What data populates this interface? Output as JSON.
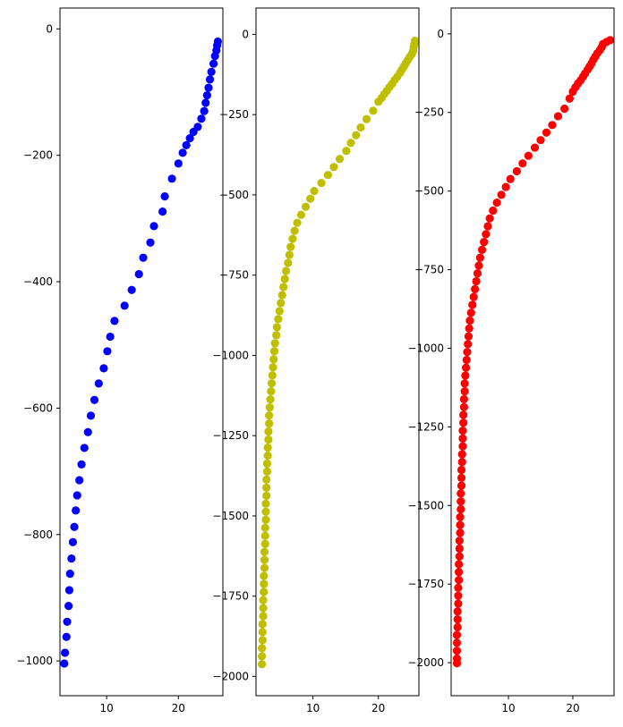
{
  "chart_data": [
    {
      "type": "scatter",
      "color": "#0000ff",
      "xlim": [
        3.5,
        26.2
      ],
      "ylim": [
        -1055,
        33
      ],
      "xticks": [
        {
          "value": 10,
          "label": "10"
        },
        {
          "value": 20,
          "label": "20"
        }
      ],
      "yticks": [
        {
          "value": 0,
          "label": "0"
        },
        {
          "value": -200,
          "label": "−200"
        },
        {
          "value": -400,
          "label": "−400"
        },
        {
          "value": -600,
          "label": "−600"
        },
        {
          "value": -800,
          "label": "−800"
        },
        {
          "value": -1000,
          "label": "−1000"
        }
      ],
      "points": [
        [
          25.5,
          -20
        ],
        [
          25.4,
          -26
        ],
        [
          25.3,
          -34
        ],
        [
          25.1,
          -43
        ],
        [
          24.9,
          -55
        ],
        [
          24.6,
          -68
        ],
        [
          24.4,
          -80
        ],
        [
          24.2,
          -93
        ],
        [
          24.0,
          -105
        ],
        [
          23.8,
          -117
        ],
        [
          23.6,
          -130
        ],
        [
          23.2,
          -142
        ],
        [
          22.7,
          -155
        ],
        [
          22.1,
          -163
        ],
        [
          21.6,
          -173
        ],
        [
          21.1,
          -184
        ],
        [
          20.6,
          -196
        ],
        [
          20.0,
          -213
        ],
        [
          19.1,
          -237
        ],
        [
          18.1,
          -265
        ],
        [
          17.8,
          -289
        ],
        [
          16.6,
          -312
        ],
        [
          16.1,
          -338
        ],
        [
          15.1,
          -362
        ],
        [
          14.5,
          -388
        ],
        [
          13.5,
          -413
        ],
        [
          12.5,
          -438
        ],
        [
          11.1,
          -462
        ],
        [
          10.5,
          -487
        ],
        [
          10.1,
          -510
        ],
        [
          9.6,
          -537
        ],
        [
          8.9,
          -561
        ],
        [
          8.3,
          -587
        ],
        [
          7.8,
          -612
        ],
        [
          7.4,
          -638
        ],
        [
          6.9,
          -663
        ],
        [
          6.5,
          -689
        ],
        [
          6.2,
          -714
        ],
        [
          5.9,
          -738
        ],
        [
          5.7,
          -762
        ],
        [
          5.5,
          -788
        ],
        [
          5.3,
          -812
        ],
        [
          5.1,
          -838
        ],
        [
          4.9,
          -862
        ],
        [
          4.8,
          -888
        ],
        [
          4.7,
          -913
        ],
        [
          4.5,
          -938
        ],
        [
          4.4,
          -962
        ],
        [
          4.2,
          -987
        ],
        [
          4.1,
          -1004
        ]
      ]
    },
    {
      "type": "scatter",
      "color": "#bfbf00",
      "xlim": [
        1.3,
        26.2
      ],
      "ylim": [
        -2060,
        82
      ],
      "xticks": [
        {
          "value": 10,
          "label": "10"
        },
        {
          "value": 20,
          "label": "20"
        }
      ],
      "yticks": [
        {
          "value": 0,
          "label": "0"
        },
        {
          "value": -250,
          "label": "−250"
        },
        {
          "value": -500,
          "label": "−500"
        },
        {
          "value": -750,
          "label": "−750"
        },
        {
          "value": -1000,
          "label": "−1000"
        },
        {
          "value": -1250,
          "label": "−1250"
        },
        {
          "value": -1500,
          "label": "−1500"
        },
        {
          "value": -1750,
          "label": "−1750"
        },
        {
          "value": -2000,
          "label": "−2000"
        }
      ],
      "points": [
        [
          25.6,
          -20
        ],
        [
          25.5,
          -30
        ],
        [
          25.4,
          -40
        ],
        [
          25.3,
          -52
        ],
        [
          25.1,
          -62
        ],
        [
          24.8,
          -70
        ],
        [
          24.5,
          -80
        ],
        [
          24.2,
          -90
        ],
        [
          23.9,
          -100
        ],
        [
          23.6,
          -110
        ],
        [
          23.3,
          -120
        ],
        [
          22.9,
          -132
        ],
        [
          22.5,
          -142
        ],
        [
          22.1,
          -154
        ],
        [
          21.7,
          -164
        ],
        [
          21.3,
          -176
        ],
        [
          20.9,
          -186
        ],
        [
          20.5,
          -198
        ],
        [
          20.0,
          -210
        ],
        [
          19.2,
          -238
        ],
        [
          18.2,
          -264
        ],
        [
          17.3,
          -290
        ],
        [
          16.6,
          -314
        ],
        [
          15.8,
          -338
        ],
        [
          15.1,
          -363
        ],
        [
          14.1,
          -388
        ],
        [
          13.2,
          -413
        ],
        [
          12.3,
          -438
        ],
        [
          11.3,
          -463
        ],
        [
          10.2,
          -488
        ],
        [
          9.6,
          -512
        ],
        [
          8.9,
          -537
        ],
        [
          8.2,
          -562
        ],
        [
          7.6,
          -587
        ],
        [
          7.2,
          -612
        ],
        [
          6.9,
          -637
        ],
        [
          6.6,
          -662
        ],
        [
          6.4,
          -687
        ],
        [
          6.2,
          -712
        ],
        [
          5.9,
          -737
        ],
        [
          5.7,
          -762
        ],
        [
          5.5,
          -787
        ],
        [
          5.3,
          -812
        ],
        [
          5.1,
          -837
        ],
        [
          4.9,
          -862
        ],
        [
          4.7,
          -887
        ],
        [
          4.5,
          -912
        ],
        [
          4.4,
          -937
        ],
        [
          4.2,
          -962
        ],
        [
          4.1,
          -987
        ],
        [
          4.0,
          -1012
        ],
        [
          3.9,
          -1037
        ],
        [
          3.8,
          -1062
        ],
        [
          3.7,
          -1087
        ],
        [
          3.6,
          -1112
        ],
        [
          3.5,
          -1137
        ],
        [
          3.4,
          -1162
        ],
        [
          3.3,
          -1187
        ],
        [
          3.3,
          -1212
        ],
        [
          3.2,
          -1237
        ],
        [
          3.2,
          -1262
        ],
        [
          3.1,
          -1287
        ],
        [
          3.1,
          -1312
        ],
        [
          3.0,
          -1337
        ],
        [
          3.0,
          -1362
        ],
        [
          2.9,
          -1387
        ],
        [
          2.9,
          -1412
        ],
        [
          2.9,
          -1437
        ],
        [
          2.8,
          -1462
        ],
        [
          2.8,
          -1487
        ],
        [
          2.8,
          -1512
        ],
        [
          2.7,
          -1537
        ],
        [
          2.7,
          -1562
        ],
        [
          2.7,
          -1587
        ],
        [
          2.6,
          -1612
        ],
        [
          2.6,
          -1637
        ],
        [
          2.6,
          -1662
        ],
        [
          2.5,
          -1687
        ],
        [
          2.5,
          -1712
        ],
        [
          2.5,
          -1737
        ],
        [
          2.4,
          -1762
        ],
        [
          2.4,
          -1787
        ],
        [
          2.4,
          -1812
        ],
        [
          2.3,
          -1837
        ],
        [
          2.3,
          -1862
        ],
        [
          2.3,
          -1887
        ],
        [
          2.2,
          -1912
        ],
        [
          2.2,
          -1937
        ],
        [
          2.2,
          -1962
        ]
      ]
    },
    {
      "type": "scatter",
      "color": "#ff0000",
      "xlim": [
        1.1,
        26.4
      ],
      "ylim": [
        -2105,
        82
      ],
      "xticks": [
        {
          "value": 10,
          "label": "10"
        },
        {
          "value": 20,
          "label": "20"
        }
      ],
      "yticks": [
        {
          "value": 0,
          "label": "0"
        },
        {
          "value": -250,
          "label": "−250"
        },
        {
          "value": -500,
          "label": "−500"
        },
        {
          "value": -750,
          "label": "−750"
        },
        {
          "value": -1000,
          "label": "−1000"
        },
        {
          "value": -1250,
          "label": "−1250"
        },
        {
          "value": -1500,
          "label": "−1500"
        },
        {
          "value": -1750,
          "label": "−1750"
        },
        {
          "value": -2000,
          "label": "−2000"
        }
      ],
      "points": [
        [
          25.8,
          -20
        ],
        [
          25.2,
          -26
        ],
        [
          24.7,
          -32
        ],
        [
          24.5,
          -42
        ],
        [
          24.2,
          -52
        ],
        [
          23.8,
          -62
        ],
        [
          23.5,
          -72
        ],
        [
          23.2,
          -82
        ],
        [
          22.9,
          -94
        ],
        [
          22.6,
          -104
        ],
        [
          22.3,
          -114
        ],
        [
          21.9,
          -126
        ],
        [
          21.6,
          -136
        ],
        [
          21.2,
          -148
        ],
        [
          20.8,
          -158
        ],
        [
          20.4,
          -170
        ],
        [
          20.0,
          -184
        ],
        [
          19.5,
          -206
        ],
        [
          18.7,
          -238
        ],
        [
          17.7,
          -262
        ],
        [
          16.8,
          -290
        ],
        [
          15.9,
          -314
        ],
        [
          15.0,
          -338
        ],
        [
          14.1,
          -362
        ],
        [
          13.1,
          -388
        ],
        [
          12.2,
          -412
        ],
        [
          11.3,
          -437
        ],
        [
          10.3,
          -462
        ],
        [
          9.6,
          -487
        ],
        [
          8.9,
          -512
        ],
        [
          8.2,
          -537
        ],
        [
          7.6,
          -562
        ],
        [
          7.1,
          -587
        ],
        [
          6.8,
          -612
        ],
        [
          6.5,
          -637
        ],
        [
          6.2,
          -662
        ],
        [
          5.9,
          -687
        ],
        [
          5.6,
          -712
        ],
        [
          5.4,
          -737
        ],
        [
          5.2,
          -762
        ],
        [
          5.0,
          -787
        ],
        [
          4.8,
          -812
        ],
        [
          4.6,
          -837
        ],
        [
          4.4,
          -862
        ],
        [
          4.2,
          -887
        ],
        [
          4.0,
          -912
        ],
        [
          3.9,
          -937
        ],
        [
          3.8,
          -962
        ],
        [
          3.7,
          -987
        ],
        [
          3.6,
          -1012
        ],
        [
          3.5,
          -1037
        ],
        [
          3.4,
          -1062
        ],
        [
          3.3,
          -1087
        ],
        [
          3.2,
          -1112
        ],
        [
          3.2,
          -1137
        ],
        [
          3.1,
          -1162
        ],
        [
          3.1,
          -1187
        ],
        [
          3.0,
          -1212
        ],
        [
          3.0,
          -1237
        ],
        [
          2.9,
          -1262
        ],
        [
          2.9,
          -1287
        ],
        [
          2.9,
          -1312
        ],
        [
          2.8,
          -1337
        ],
        [
          2.8,
          -1362
        ],
        [
          2.7,
          -1387
        ],
        [
          2.7,
          -1412
        ],
        [
          2.7,
          -1437
        ],
        [
          2.6,
          -1462
        ],
        [
          2.6,
          -1487
        ],
        [
          2.6,
          -1512
        ],
        [
          2.5,
          -1537
        ],
        [
          2.5,
          -1562
        ],
        [
          2.5,
          -1587
        ],
        [
          2.4,
          -1612
        ],
        [
          2.4,
          -1637
        ],
        [
          2.4,
          -1662
        ],
        [
          2.3,
          -1687
        ],
        [
          2.3,
          -1712
        ],
        [
          2.3,
          -1737
        ],
        [
          2.2,
          -1762
        ],
        [
          2.2,
          -1787
        ],
        [
          2.2,
          -1812
        ],
        [
          2.1,
          -1837
        ],
        [
          2.1,
          -1862
        ],
        [
          2.1,
          -1887
        ],
        [
          2.0,
          -1912
        ],
        [
          2.0,
          -1937
        ],
        [
          2.0,
          -1962
        ],
        [
          2.0,
          -1987
        ],
        [
          2.0,
          -2002
        ]
      ]
    }
  ]
}
